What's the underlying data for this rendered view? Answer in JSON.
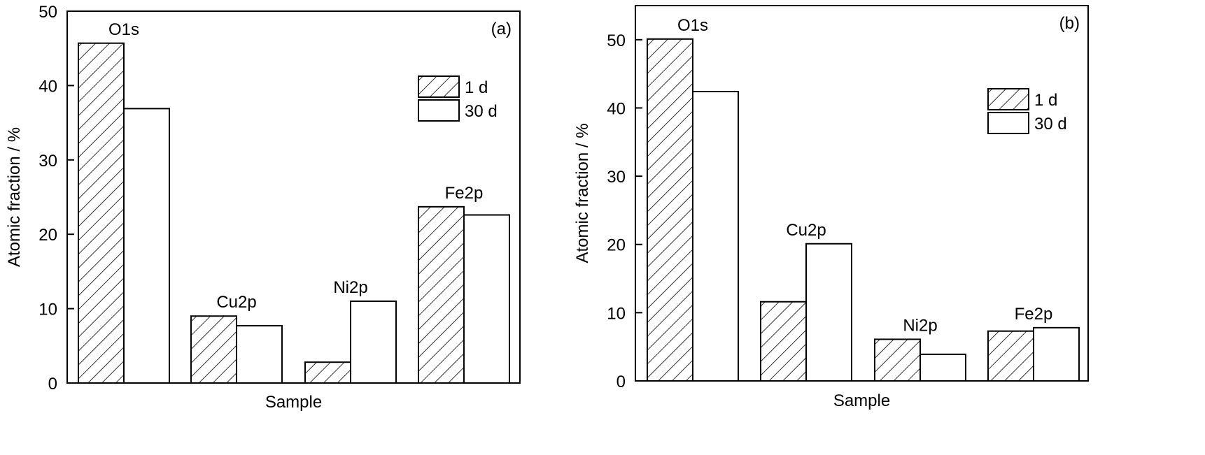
{
  "colors": {
    "stroke": "#000000",
    "fill": "#ffffff"
  },
  "chart_data": [
    {
      "type": "bar",
      "panel_label": "(a)",
      "xlabel": "Sample",
      "ylabel": "Atomic fraction / %",
      "ylim": [
        0,
        50
      ],
      "yticks": [
        "0",
        "10",
        "20",
        "30",
        "40",
        "50"
      ],
      "categories": [
        "O1s",
        "Cu2p",
        "Ni2p",
        "Fe2p"
      ],
      "series": [
        {
          "name": "1 d",
          "pattern": "hatch",
          "values": [
            45.7,
            9.0,
            2.8,
            23.7
          ]
        },
        {
          "name": "30 d",
          "pattern": "none",
          "values": [
            36.9,
            7.7,
            11.0,
            22.6
          ]
        }
      ],
      "legend": "top-right",
      "grid": false
    },
    {
      "type": "bar",
      "panel_label": "(b)",
      "xlabel": "Sample",
      "ylabel": "Atomic fraction / %",
      "ylim": [
        0,
        55
      ],
      "yticks": [
        "0",
        "10",
        "20",
        "30",
        "40",
        "50"
      ],
      "categories": [
        "O1s",
        "Cu2p",
        "Ni2p",
        "Fe2p"
      ],
      "series": [
        {
          "name": "1 d",
          "pattern": "hatch",
          "values": [
            50.1,
            11.6,
            6.1,
            7.3
          ]
        },
        {
          "name": "30 d",
          "pattern": "none",
          "values": [
            42.4,
            20.1,
            3.9,
            7.8
          ]
        }
      ],
      "legend": "top-right",
      "grid": false
    }
  ]
}
